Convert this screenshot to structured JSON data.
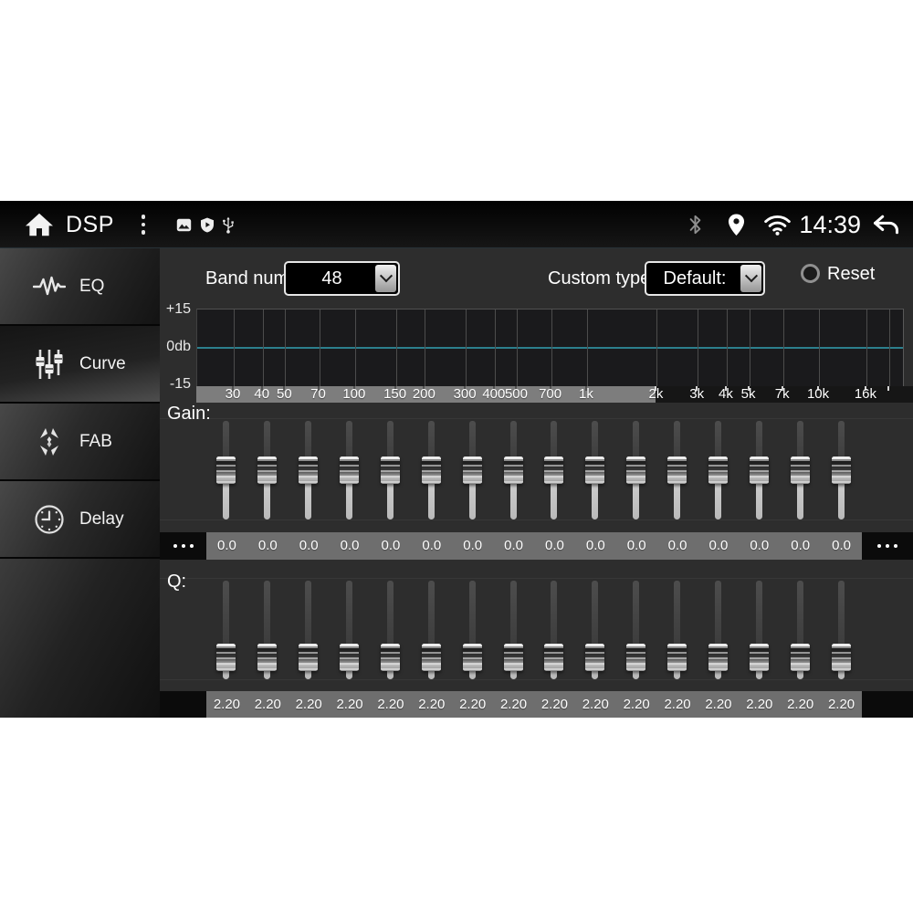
{
  "status_bar": {
    "title": "DSP",
    "time": "14:39",
    "left_icons": [
      "home-icon",
      "overflow-menu-icon",
      "image-icon",
      "shield-icon",
      "usb-icon"
    ],
    "right_icons": [
      "bluetooth-icon",
      "location-icon",
      "wifi-icon",
      "back-icon"
    ]
  },
  "sidebar": {
    "items": [
      {
        "label": "EQ",
        "icon": "waveform-icon",
        "selected": false
      },
      {
        "label": "Curve",
        "icon": "sliders-icon",
        "selected": true
      },
      {
        "label": "FAB",
        "icon": "fab-arrows-icon",
        "selected": false
      },
      {
        "label": "Delay",
        "icon": "clock-icon",
        "selected": false
      }
    ]
  },
  "controls": {
    "band_num_label": "Band num:",
    "band_num_value": "48",
    "custom_type_label": "Custom type:",
    "custom_type_value": "Default:",
    "reset_label": "Reset"
  },
  "graph": {
    "y_axis_labels": [
      "+15",
      "0db",
      "-15"
    ],
    "freq_ticks": [
      {
        "label": "30",
        "f": 30
      },
      {
        "label": "40",
        "f": 40
      },
      {
        "label": "50",
        "f": 50
      },
      {
        "label": "70",
        "f": 70
      },
      {
        "label": "100",
        "f": 100
      },
      {
        "label": "150",
        "f": 150
      },
      {
        "label": "200",
        "f": 200
      },
      {
        "label": "300",
        "f": 300
      },
      {
        "label": "400",
        "f": 400
      },
      {
        "label": "500",
        "f": 500
      },
      {
        "label": "700",
        "f": 700
      },
      {
        "label": "1k",
        "f": 1000
      },
      {
        "label": "2k",
        "f": 2000
      },
      {
        "label": "3k",
        "f": 3000
      },
      {
        "label": "4k",
        "f": 4000
      },
      {
        "label": "5k",
        "f": 5000
      },
      {
        "label": "7k",
        "f": 7000
      },
      {
        "label": "10k",
        "f": 10000
      },
      {
        "label": "16k",
        "f": 16000
      },
      {
        "label": "",
        "f": 20000
      }
    ],
    "curve": {
      "shape": "flat",
      "db": 0,
      "color": "#2c7f8d"
    },
    "scroll_region_end_f": 2000
  },
  "gain": {
    "label": "Gain:",
    "overflow_left": "...",
    "overflow_right": "...",
    "values": [
      "0.0",
      "0.0",
      "0.0",
      "0.0",
      "0.0",
      "0.0",
      "0.0",
      "0.0",
      "0.0",
      "0.0",
      "0.0",
      "0.0",
      "0.0",
      "0.0",
      "0.0",
      "0.0"
    ]
  },
  "q": {
    "label": "Q:",
    "values": [
      "2.20",
      "2.20",
      "2.20",
      "2.20",
      "2.20",
      "2.20",
      "2.20",
      "2.20",
      "2.20",
      "2.20",
      "2.20",
      "2.20",
      "2.20",
      "2.20",
      "2.20",
      "2.20"
    ]
  },
  "colors": {
    "curve_accent": "#2c7f8d",
    "values_bar": "#6e6e6e",
    "axis_scroll_gray": "#7d7d7d",
    "main_bg": "#2d2d2d",
    "graph_bg": "#1a1a1c"
  }
}
